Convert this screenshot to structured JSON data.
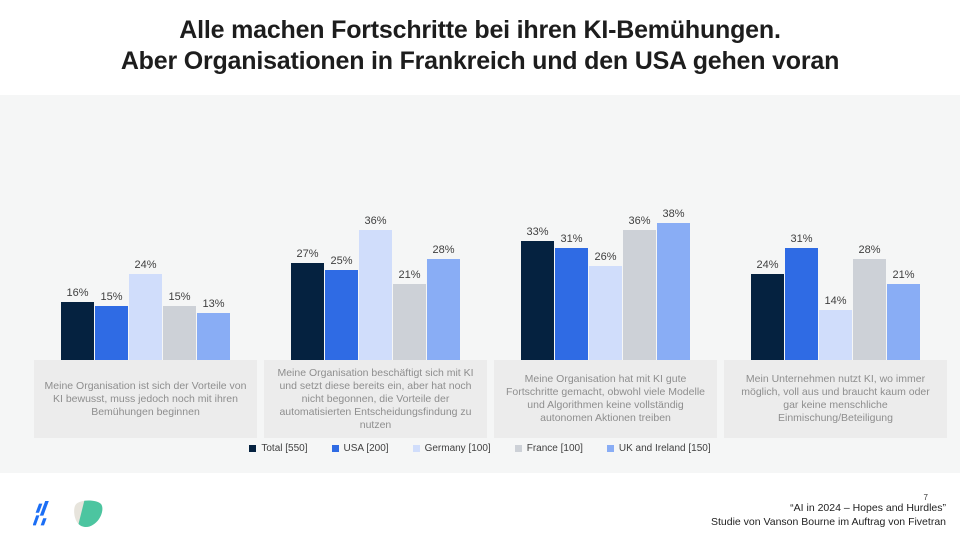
{
  "title": {
    "line1": "Alle machen Fortschritte bei ihren KI-Bemühungen.",
    "line2": "Aber Organisationen in Frankreich und den USA gehen voran"
  },
  "chart_data": {
    "type": "bar",
    "title": "Alle machen Fortschritte bei ihren KI-Bemühungen. Aber Organisationen in Frankreich und den USA gehen voran",
    "value_suffix": "%",
    "ylim": [
      0,
      40
    ],
    "grid": false,
    "legend_position": "bottom",
    "value_labels": true,
    "categories": [
      "Meine Organisation ist sich der Vorteile von KI bewusst, muss jedoch noch mit ihren Bemühungen beginnen",
      "Meine Organisation beschäftigt sich mit KI und setzt diese bereits ein, aber hat noch nicht begonnen, die Vorteile der automatisierten Entscheidungsfindung zu nutzen",
      "Meine Organisation hat mit KI gute Fortschritte gemacht, obwohl viele Modelle und Algorithmen keine vollständig autonomen Aktionen treiben",
      "Mein Unternehmen nutzt KI, wo immer möglich, voll aus und braucht kaum oder gar keine menschliche Einmischung/Beteiligung"
    ],
    "series": [
      {
        "name": "Total [550]",
        "color": "#052240",
        "values": [
          16,
          27,
          33,
          24
        ]
      },
      {
        "name": "USA [200]",
        "color": "#2f6be4",
        "values": [
          15,
          25,
          31,
          31
        ]
      },
      {
        "name": "Germany [100]",
        "color": "#d0ddfb",
        "values": [
          24,
          36,
          26,
          14
        ]
      },
      {
        "name": "France [100]",
        "color": "#cdd1d7",
        "values": [
          15,
          21,
          36,
          28
        ]
      },
      {
        "name": "UK and Ireland [150]",
        "color": "#89adf5",
        "values": [
          13,
          28,
          38,
          21
        ]
      }
    ]
  },
  "footer": {
    "citation_line1": "“AI in 2024 – Hopes and Hurdles”",
    "citation_line2": "Studie von Vanson Bourne im Auftrag von Fivetran",
    "page_number": "7",
    "logos": [
      "fivetran-logo",
      "vanson-bourne-logo"
    ]
  },
  "colors": {
    "slide_bg": "#ffffff",
    "chart_area_bg": "#f5f6f6",
    "category_box_bg": "#ececec",
    "title_text": "#1d1d1d",
    "value_label_text": "#3f3f3f",
    "category_text": "#8e8e8e",
    "fivetran_blue": "#1b6ef5",
    "vanson_bourne_green": "#4cc5a0",
    "vanson_bourne_gray": "#e7e4dc"
  }
}
